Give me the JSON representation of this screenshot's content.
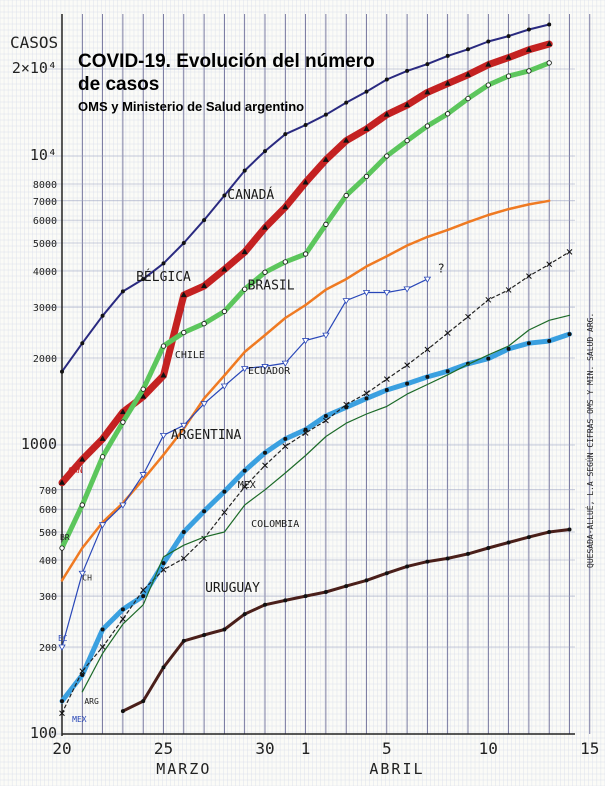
{
  "title": "COVID-19.",
  "title_rest": "Evolución del número de casos",
  "subtitle": "OMS y Ministerio de Salud argentino",
  "side_note": "QUESADA-ALLUÉ, L.A SEGÚN CIFRAS OMS Y MIN. SALUD ARG.",
  "chart_data": {
    "type": "line",
    "title": "COVID-19. Evolución del número de casos",
    "subtitle": "OMS y Ministerio de Salud argentino",
    "ylabel": "CASOS",
    "yscale": "log",
    "ylim": [
      100,
      25000
    ],
    "xlim": [
      20,
      45
    ],
    "grid": true,
    "x_month_labels": [
      {
        "label": "MARZO",
        "x": 26
      },
      {
        "label": "ABRIL",
        "x": 36.5
      }
    ],
    "x_ticks": [
      {
        "x": 20,
        "label": "20"
      },
      {
        "x": 25,
        "label": "25"
      },
      {
        "x": 30,
        "label": "30"
      },
      {
        "x": 32,
        "label": "1"
      },
      {
        "x": 36,
        "label": "5"
      },
      {
        "x": 41,
        "label": "10"
      },
      {
        "x": 46,
        "label": "15"
      }
    ],
    "y_ticks": [
      {
        "y": 100,
        "label": "100"
      },
      {
        "y": 200,
        "label": "200"
      },
      {
        "y": 300,
        "label": "300"
      },
      {
        "y": 400,
        "label": "400"
      },
      {
        "y": 500,
        "label": "500"
      },
      {
        "y": 600,
        "label": "600"
      },
      {
        "y": 700,
        "label": "700"
      },
      {
        "y": 1000,
        "label": "1000"
      },
      {
        "y": 2000,
        "label": "2000"
      },
      {
        "y": 3000,
        "label": "3000"
      },
      {
        "y": 4000,
        "label": "4000"
      },
      {
        "y": 5000,
        "label": "5000"
      },
      {
        "y": 6000,
        "label": "6000"
      },
      {
        "y": 7000,
        "label": "7000"
      },
      {
        "y": 8000,
        "label": "8000"
      },
      {
        "y": 10000,
        "label": "10⁴"
      },
      {
        "y": 20000,
        "label": "2×10⁴"
      }
    ],
    "series": [
      {
        "name": "BÉLGICA",
        "color": "#2a2a80",
        "width": 2,
        "marker": "dot",
        "label_at": [
          25,
          3700
        ],
        "points": [
          [
            20,
            1795
          ],
          [
            21,
            2250
          ],
          [
            22,
            2800
          ],
          [
            23,
            3400
          ],
          [
            24,
            3750
          ],
          [
            25,
            4250
          ],
          [
            26,
            5000
          ],
          [
            27,
            6000
          ],
          [
            28,
            7300
          ],
          [
            29,
            8900
          ],
          [
            30,
            10400
          ],
          [
            31,
            11900
          ],
          [
            32,
            12800
          ],
          [
            33,
            13900
          ],
          [
            34,
            15300
          ],
          [
            35,
            16700
          ],
          [
            36,
            18400
          ],
          [
            37,
            19700
          ],
          [
            38,
            20800
          ],
          [
            39,
            22200
          ],
          [
            40,
            23400
          ],
          [
            41,
            24900
          ],
          [
            42,
            26000
          ],
          [
            43,
            27400
          ],
          [
            44,
            28500
          ]
        ]
      },
      {
        "name": "CANADÁ",
        "color": "#c42121",
        "width": 7,
        "marker": "tri",
        "label_at": [
          29.3,
          7100
        ],
        "points": [
          [
            20,
            740
          ],
          [
            21,
            890
          ],
          [
            22,
            1050
          ],
          [
            23,
            1300
          ],
          [
            24,
            1470
          ],
          [
            25,
            1740
          ],
          [
            26,
            3300
          ],
          [
            27,
            3550
          ],
          [
            28,
            4050
          ],
          [
            29,
            4650
          ],
          [
            30,
            5650
          ],
          [
            31,
            6650
          ],
          [
            32,
            8100
          ],
          [
            33,
            9700
          ],
          [
            34,
            11300
          ],
          [
            35,
            12400
          ],
          [
            36,
            13900
          ],
          [
            37,
            15000
          ],
          [
            38,
            16600
          ],
          [
            39,
            17800
          ],
          [
            40,
            19100
          ],
          [
            41,
            20700
          ],
          [
            42,
            21900
          ],
          [
            43,
            23300
          ],
          [
            44,
            24400
          ]
        ]
      },
      {
        "name": "BRASIL",
        "color": "#5cc65c",
        "width": 5,
        "marker": "circle",
        "label_at": [
          30.3,
          3450
        ],
        "points": [
          [
            20,
            440
          ],
          [
            21,
            620
          ],
          [
            22,
            910
          ],
          [
            23,
            1200
          ],
          [
            24,
            1560
          ],
          [
            25,
            2200
          ],
          [
            26,
            2450
          ],
          [
            27,
            2630
          ],
          [
            28,
            2900
          ],
          [
            29,
            3460
          ],
          [
            30,
            3960
          ],
          [
            31,
            4300
          ],
          [
            32,
            4580
          ],
          [
            33,
            5800
          ],
          [
            34,
            7300
          ],
          [
            35,
            8500
          ],
          [
            36,
            10000
          ],
          [
            37,
            11300
          ],
          [
            38,
            12700
          ],
          [
            39,
            14000
          ],
          [
            40,
            15800
          ],
          [
            41,
            17600
          ],
          [
            42,
            18900
          ],
          [
            43,
            19700
          ],
          [
            44,
            21000
          ]
        ]
      },
      {
        "name": "CHILE",
        "color": "#ef7a22",
        "width": 2.5,
        "marker": "none",
        "label_at": [
          26.3,
          2000
        ],
        "points": [
          [
            20,
            340
          ],
          [
            21,
            440
          ],
          [
            22,
            540
          ],
          [
            23,
            630
          ],
          [
            24,
            760
          ],
          [
            25,
            925
          ],
          [
            26,
            1140
          ],
          [
            27,
            1450
          ],
          [
            28,
            1740
          ],
          [
            29,
            2100
          ],
          [
            30,
            2400
          ],
          [
            31,
            2750
          ],
          [
            32,
            3050
          ],
          [
            33,
            3450
          ],
          [
            34,
            3750
          ],
          [
            35,
            4150
          ],
          [
            36,
            4500
          ],
          [
            37,
            4900
          ],
          [
            38,
            5250
          ],
          [
            39,
            5550
          ],
          [
            40,
            5900
          ],
          [
            41,
            6250
          ],
          [
            42,
            6550
          ],
          [
            43,
            6800
          ],
          [
            44,
            7000
          ]
        ]
      },
      {
        "name": "ECUADOR",
        "color": "#2947b8",
        "width": 1.2,
        "marker": "triopen",
        "label_at": [
          30.2,
          1760
        ],
        "points": [
          [
            20,
            200
          ],
          [
            21,
            360
          ],
          [
            22,
            530
          ],
          [
            23,
            620
          ],
          [
            24,
            790
          ],
          [
            25,
            1080
          ],
          [
            26,
            1170
          ],
          [
            27,
            1390
          ],
          [
            28,
            1600
          ],
          [
            29,
            1840
          ],
          [
            30,
            1870
          ],
          [
            31,
            1920
          ],
          [
            32,
            2300
          ],
          [
            33,
            2400
          ],
          [
            34,
            3160
          ],
          [
            35,
            3370
          ],
          [
            36,
            3370
          ],
          [
            37,
            3470
          ],
          [
            38,
            3750
          ]
        ]
      },
      {
        "name": "ARGENTINA",
        "color": "#3aa0e0",
        "width": 5,
        "marker": "dot",
        "label_at": [
          27.1,
          1050
        ],
        "points": [
          [
            20,
            130
          ],
          [
            21,
            160
          ],
          [
            22,
            230
          ],
          [
            23,
            270
          ],
          [
            24,
            300
          ],
          [
            25,
            390
          ],
          [
            26,
            500
          ],
          [
            27,
            590
          ],
          [
            28,
            690
          ],
          [
            29,
            815
          ],
          [
            30,
            940
          ],
          [
            31,
            1050
          ],
          [
            32,
            1130
          ],
          [
            33,
            1260
          ],
          [
            34,
            1350
          ],
          [
            35,
            1450
          ],
          [
            36,
            1550
          ],
          [
            37,
            1630
          ],
          [
            38,
            1720
          ],
          [
            39,
            1800
          ],
          [
            40,
            1910
          ],
          [
            41,
            1990
          ],
          [
            42,
            2150
          ],
          [
            43,
            2250
          ],
          [
            44,
            2290
          ],
          [
            45,
            2420
          ]
        ]
      },
      {
        "name": "MEX",
        "color": "#222222",
        "width": 1.2,
        "dash": "3,3",
        "marker": "cross",
        "label_at": [
          29.1,
          710
        ],
        "points": [
          [
            20,
            118
          ],
          [
            21,
            165
          ],
          [
            22,
            200
          ],
          [
            23,
            250
          ],
          [
            24,
            315
          ],
          [
            25,
            370
          ],
          [
            26,
            405
          ],
          [
            27,
            475
          ],
          [
            28,
            585
          ],
          [
            29,
            717
          ],
          [
            30,
            850
          ],
          [
            31,
            990
          ],
          [
            32,
            1100
          ],
          [
            33,
            1215
          ],
          [
            34,
            1380
          ],
          [
            35,
            1510
          ],
          [
            36,
            1690
          ],
          [
            37,
            1890
          ],
          [
            38,
            2140
          ],
          [
            39,
            2440
          ],
          [
            40,
            2780
          ],
          [
            41,
            3180
          ],
          [
            42,
            3440
          ],
          [
            43,
            3840
          ],
          [
            44,
            4220
          ],
          [
            45,
            4660
          ]
        ]
      },
      {
        "name": "COLOMBIA",
        "color": "#1c6a28",
        "width": 1.2,
        "marker": "none",
        "label_at": [
          30.5,
          520
        ],
        "points": [
          [
            21,
            140
          ],
          [
            22,
            190
          ],
          [
            23,
            240
          ],
          [
            24,
            280
          ],
          [
            25,
            410
          ],
          [
            26,
            450
          ],
          [
            27,
            480
          ],
          [
            28,
            500
          ],
          [
            29,
            620
          ],
          [
            30,
            700
          ],
          [
            31,
            800
          ],
          [
            32,
            920
          ],
          [
            33,
            1070
          ],
          [
            34,
            1190
          ],
          [
            35,
            1280
          ],
          [
            36,
            1360
          ],
          [
            37,
            1500
          ],
          [
            38,
            1620
          ],
          [
            39,
            1750
          ],
          [
            40,
            1900
          ],
          [
            41,
            2050
          ],
          [
            42,
            2200
          ],
          [
            43,
            2500
          ],
          [
            44,
            2700
          ],
          [
            45,
            2810
          ]
        ]
      },
      {
        "name": "URUGUAY",
        "color": "#4a1f1a",
        "width": 3,
        "marker": "dot",
        "label_at": [
          28.4,
          310
        ],
        "points": [
          [
            23,
            120
          ],
          [
            24,
            130
          ],
          [
            25,
            170
          ],
          [
            26,
            210
          ],
          [
            27,
            220
          ],
          [
            28,
            230
          ],
          [
            29,
            260
          ],
          [
            30,
            280
          ],
          [
            31,
            290
          ],
          [
            32,
            300
          ],
          [
            33,
            310
          ],
          [
            34,
            325
          ],
          [
            35,
            340
          ],
          [
            36,
            360
          ],
          [
            37,
            380
          ],
          [
            38,
            395
          ],
          [
            39,
            405
          ],
          [
            40,
            420
          ],
          [
            41,
            440
          ],
          [
            42,
            460
          ],
          [
            43,
            480
          ],
          [
            44,
            500
          ],
          [
            45,
            510
          ]
        ]
      }
    ],
    "start_labels": [
      {
        "label": "CAN",
        "color": "#c42121",
        "at": [
          20.3,
          800
        ]
      },
      {
        "label": "BR",
        "color": "#222222",
        "at": [
          19.9,
          470
        ]
      },
      {
        "label": "CH",
        "color": "#222222",
        "at": [
          21.0,
          340
        ]
      },
      {
        "label": "EC",
        "color": "#2947b8",
        "at": [
          19.8,
          210
        ]
      },
      {
        "label": "ARG",
        "color": "#222222",
        "at": [
          21.1,
          127
        ]
      },
      {
        "label": "MEX",
        "color": "#2947b8",
        "at": [
          20.5,
          110
        ]
      }
    ],
    "annotations": [
      {
        "text": "?",
        "color": "#222222",
        "at": [
          38.5,
          3950
        ]
      }
    ]
  }
}
